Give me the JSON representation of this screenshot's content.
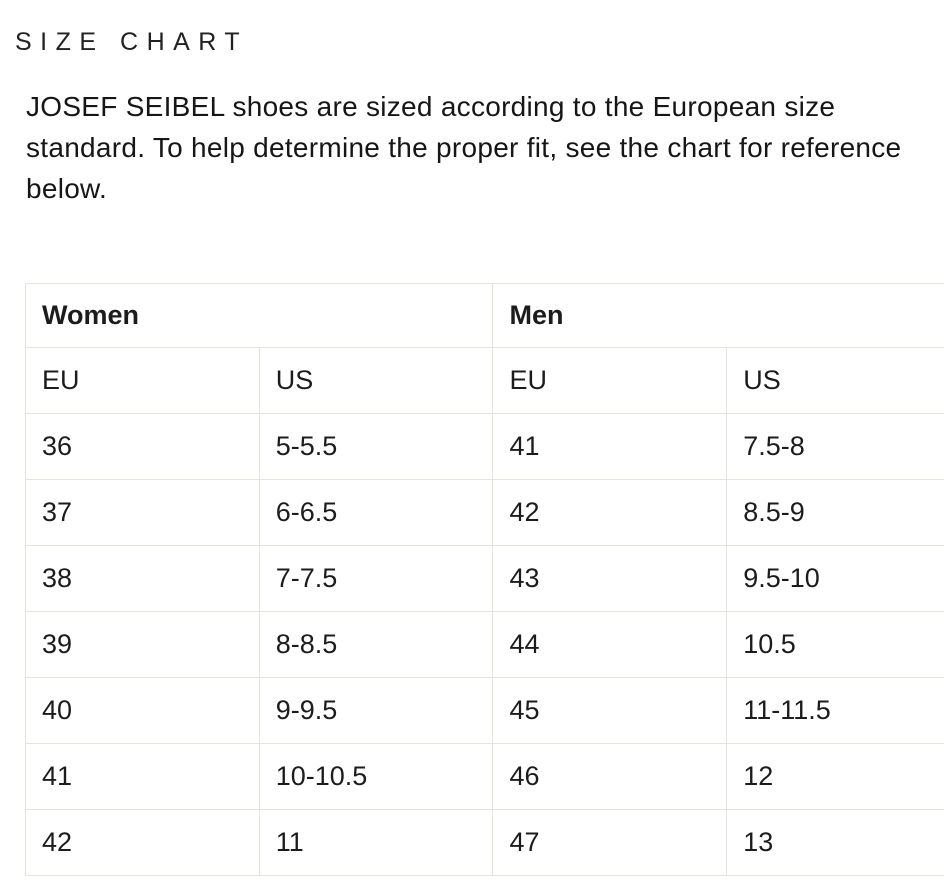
{
  "page": {
    "title": "SIZE CHART",
    "intro": "JOSEF SEIBEL shoes are sized according to the European size standard. To help determine the proper fit, see the chart for reference below."
  },
  "size_chart": {
    "group_headers": [
      "Women",
      "Men"
    ],
    "columns": [
      "EU",
      "US",
      "EU",
      "US"
    ],
    "rows": [
      [
        "36",
        "5-5.5",
        "41",
        "7.5-8"
      ],
      [
        "37",
        "6-6.5",
        "42",
        "8.5-9"
      ],
      [
        "38",
        "7-7.5",
        "43",
        "9.5-10"
      ],
      [
        "39",
        "8-8.5",
        "44",
        "10.5"
      ],
      [
        "40",
        "9-9.5",
        "45",
        "11-11.5"
      ],
      [
        "41",
        "10-10.5",
        "46",
        "12"
      ],
      [
        "42",
        "11",
        "47",
        "13"
      ]
    ]
  },
  "colors": {
    "background": "#ffffff",
    "text": "#1c1c1c",
    "table_border": "#e6e3dc"
  }
}
